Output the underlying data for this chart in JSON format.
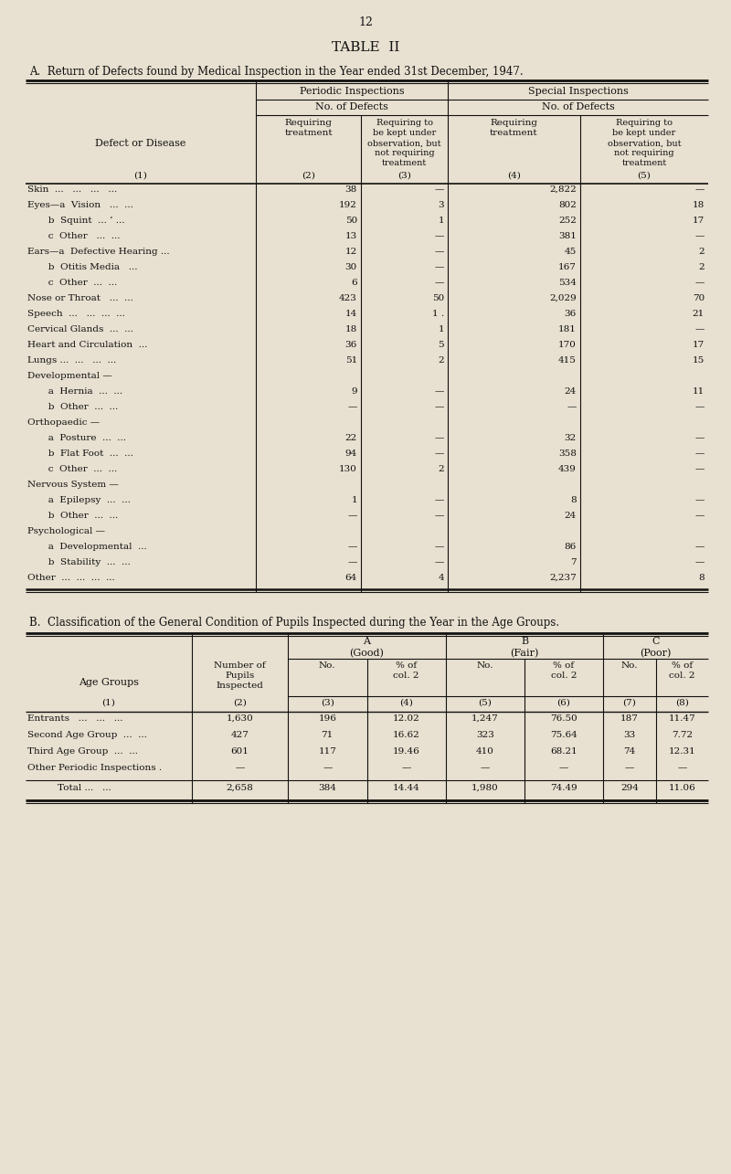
{
  "page_number": "12",
  "title": "TABLE  II",
  "subtitle_a": "A.  Return of Defects found by Medical Inspection in the Year ended 31st December, 1947.",
  "bg_color": "#e8e0d0",
  "text_color": "#111111",
  "table_a": {
    "rows": [
      {
        "label": "Skin  ...   ...   ...   ...",
        "c2": "38",
        "c3": "—",
        "c4": "2,822",
        "c5": "—"
      },
      {
        "label": "Eyes—a  Vision   ...  ...",
        "c2": "192",
        "c3": "3",
        "c4": "802",
        "c5": "18"
      },
      {
        "label": "       b  Squint  ... ’ ...",
        "c2": "50",
        "c3": "1",
        "c4": "252",
        "c5": "17"
      },
      {
        "label": "       c  Other   ...  ...",
        "c2": "13",
        "c3": "—",
        "c4": "381",
        "c5": "—"
      },
      {
        "label": "Ears—a  Defective Hearing ...",
        "c2": "12",
        "c3": "—",
        "c4": "45",
        "c5": "2"
      },
      {
        "label": "       b  Otitis Media   ...",
        "c2": "30",
        "c3": "—",
        "c4": "167",
        "c5": "2"
      },
      {
        "label": "       c  Other  ...  ...",
        "c2": "6",
        "c3": "—",
        "c4": "534",
        "c5": "—"
      },
      {
        "label": "Nose or Throat   ...  ...",
        "c2": "423",
        "c3": "50",
        "c4": "2,029",
        "c5": "70"
      },
      {
        "label": "Speech  ...   ...  ...  ...",
        "c2": "14",
        "c3": "1 .",
        "c4": "36",
        "c5": "21"
      },
      {
        "label": "Cervical Glands  ...  ...",
        "c2": "18",
        "c3": "1",
        "c4": "181",
        "c5": "—"
      },
      {
        "label": "Heart and Circulation  ...",
        "c2": "36",
        "c3": "5",
        "c4": "170",
        "c5": "17"
      },
      {
        "label": "Lungs ...  ...   ...  ...",
        "c2": "51",
        "c3": "2",
        "c4": "415",
        "c5": "15"
      },
      {
        "label": "Developmental —",
        "c2": "",
        "c3": "",
        "c4": "",
        "c5": ""
      },
      {
        "label": "       a  Hernia  ...  ...",
        "c2": "9",
        "c3": "—",
        "c4": "24",
        "c5": "11"
      },
      {
        "label": "       b  Other  ...  ...",
        "c2": "—",
        "c3": "—",
        "c4": "—",
        "c5": "—"
      },
      {
        "label": "Orthopaedic —",
        "c2": "",
        "c3": "",
        "c4": "",
        "c5": ""
      },
      {
        "label": "       a  Posture  ...  ...",
        "c2": "22",
        "c3": "—",
        "c4": "32",
        "c5": "—"
      },
      {
        "label": "       b  Flat Foot  ...  ...",
        "c2": "94",
        "c3": "—",
        "c4": "358",
        "c5": "—"
      },
      {
        "label": "       c  Other  ...  ...",
        "c2": "130",
        "c3": "2",
        "c4": "439",
        "c5": "—"
      },
      {
        "label": "Nervous System —",
        "c2": "",
        "c3": "",
        "c4": "",
        "c5": ""
      },
      {
        "label": "       a  Epilepsy  ...  ...",
        "c2": "1",
        "c3": "—",
        "c4": "8",
        "c5": "—"
      },
      {
        "label": "       b  Other  ...  ...",
        "c2": "—",
        "c3": "—",
        "c4": "24",
        "c5": "—"
      },
      {
        "label": "Psychological —",
        "c2": "",
        "c3": "",
        "c4": "",
        "c5": ""
      },
      {
        "label": "       a  Developmental  ...",
        "c2": "—",
        "c3": "—",
        "c4": "86",
        "c5": "—"
      },
      {
        "label": "       b  Stability  ...  ...",
        "c2": "—",
        "c3": "—",
        "c4": "7",
        "c5": "—"
      },
      {
        "label": "Other  ...  ...  ...  ...",
        "c2": "64",
        "c3": "4",
        "c4": "2,237",
        "c5": "8"
      }
    ]
  },
  "subtitle_b": "B.  Classification of the General Condition of Pupils Inspected during the Year in the Age Groups.",
  "table_b": {
    "rows": [
      {
        "label": "Entrants   ...   ...   ...",
        "c2": "1,630",
        "c3": "196",
        "c4": "12.02",
        "c5": "1,247",
        "c6": "76.50",
        "c7": "187",
        "c8": "11.47"
      },
      {
        "label": "Second Age Group  ...  ...",
        "c2": "427",
        "c3": "71",
        "c4": "16.62",
        "c5": "323",
        "c6": "75.64",
        "c7": "33",
        "c8": "7.72"
      },
      {
        "label": "Third Age Group  ...  ...",
        "c2": "601",
        "c3": "117",
        "c4": "19.46",
        "c5": "410",
        "c6": "68.21",
        "c7": "74",
        "c8": "12.31"
      },
      {
        "label": "Other Periodic Inspections .",
        "c2": "—",
        "c3": "—",
        "c4": "—",
        "c5": "—",
        "c6": "—",
        "c7": "—",
        "c8": "—"
      }
    ],
    "total_row": {
      "label": "Total ...   ...",
      "c2": "2,658",
      "c3": "384",
      "c4": "14.44",
      "c5": "1,980",
      "c6": "74.49",
      "c7": "294",
      "c8": "11.06"
    }
  }
}
